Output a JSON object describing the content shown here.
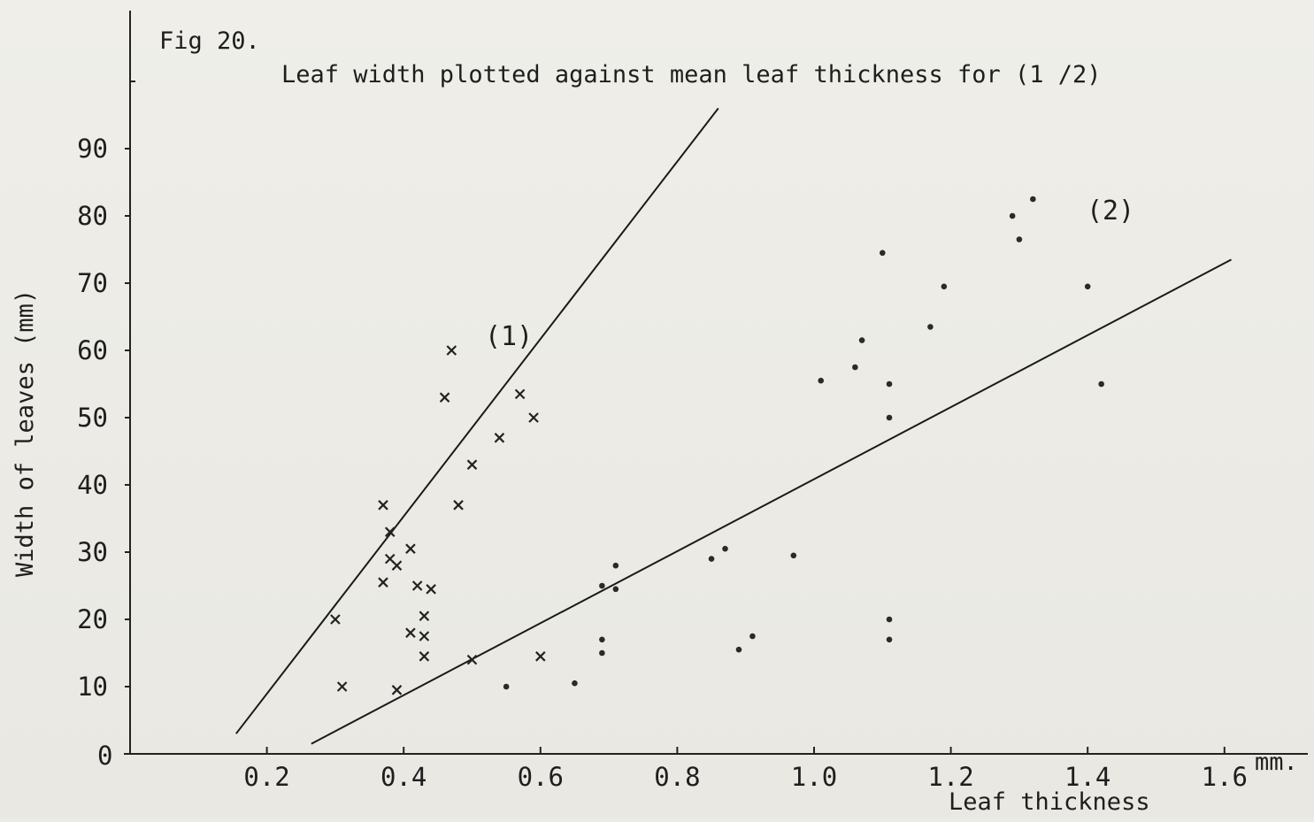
{
  "chart_data": {
    "type": "scatter",
    "figure_label": "Fig 20.",
    "title": "Leaf width plotted against mean leaf thickness for (1 /2)",
    "xlabel": "Leaf thickness",
    "ylabel": "Width of leaves (mm)",
    "x_unit": "mm.",
    "y_origin_label": "0",
    "xlim": [
      0.0,
      1.62
    ],
    "ylim": [
      0,
      100
    ],
    "xticks": [
      "0.2",
      "0.4",
      "0.6",
      "0.8",
      "1.0",
      "1.2",
      "1.4",
      "1.6"
    ],
    "yticks": [
      "10",
      "20",
      "30",
      "40",
      "50",
      "60",
      "70",
      "80",
      "90"
    ],
    "xtick_values": [
      0.2,
      0.4,
      0.6,
      0.8,
      1.0,
      1.2,
      1.4,
      1.6
    ],
    "ytick_values": [
      10,
      20,
      30,
      40,
      50,
      60,
      70,
      80,
      90
    ],
    "grid": false,
    "series": [
      {
        "name": "(1)",
        "marker": "cross",
        "points": [
          [
            0.3,
            20.0
          ],
          [
            0.31,
            10.0
          ],
          [
            0.37,
            37.0
          ],
          [
            0.37,
            25.5
          ],
          [
            0.38,
            29.0
          ],
          [
            0.38,
            33.0
          ],
          [
            0.39,
            28.0
          ],
          [
            0.39,
            9.5
          ],
          [
            0.41,
            30.5
          ],
          [
            0.41,
            18.0
          ],
          [
            0.42,
            25.0
          ],
          [
            0.43,
            20.5
          ],
          [
            0.43,
            17.5
          ],
          [
            0.43,
            14.5
          ],
          [
            0.44,
            24.5
          ],
          [
            0.46,
            53.0
          ],
          [
            0.47,
            60.0
          ],
          [
            0.48,
            37.0
          ],
          [
            0.5,
            43.0
          ],
          [
            0.5,
            14.0
          ],
          [
            0.54,
            47.0
          ],
          [
            0.57,
            53.5
          ],
          [
            0.59,
            50.0
          ],
          [
            0.6,
            14.5
          ]
        ],
        "fit_line": [
          [
            0.155,
            3.0
          ],
          [
            0.86,
            96.0
          ]
        ]
      },
      {
        "name": "(2)",
        "marker": "dot",
        "points": [
          [
            0.55,
            10.0
          ],
          [
            0.65,
            10.5
          ],
          [
            0.69,
            25.0
          ],
          [
            0.69,
            17.0
          ],
          [
            0.69,
            15.0
          ],
          [
            0.71,
            28.0
          ],
          [
            0.71,
            24.5
          ],
          [
            0.85,
            29.0
          ],
          [
            0.87,
            30.5
          ],
          [
            0.89,
            15.5
          ],
          [
            0.91,
            17.5
          ],
          [
            0.97,
            29.5
          ],
          [
            1.01,
            55.5
          ],
          [
            1.06,
            57.5
          ],
          [
            1.07,
            61.5
          ],
          [
            1.1,
            74.5
          ],
          [
            1.11,
            55.0
          ],
          [
            1.11,
            50.0
          ],
          [
            1.11,
            20.0
          ],
          [
            1.11,
            17.0
          ],
          [
            1.17,
            63.5
          ],
          [
            1.19,
            69.5
          ],
          [
            1.29,
            80.0
          ],
          [
            1.3,
            76.5
          ],
          [
            1.32,
            82.5
          ],
          [
            1.4,
            69.5
          ],
          [
            1.42,
            55.0
          ]
        ],
        "fit_line": [
          [
            0.265,
            1.5
          ],
          [
            1.61,
            73.5
          ]
        ]
      }
    ]
  }
}
